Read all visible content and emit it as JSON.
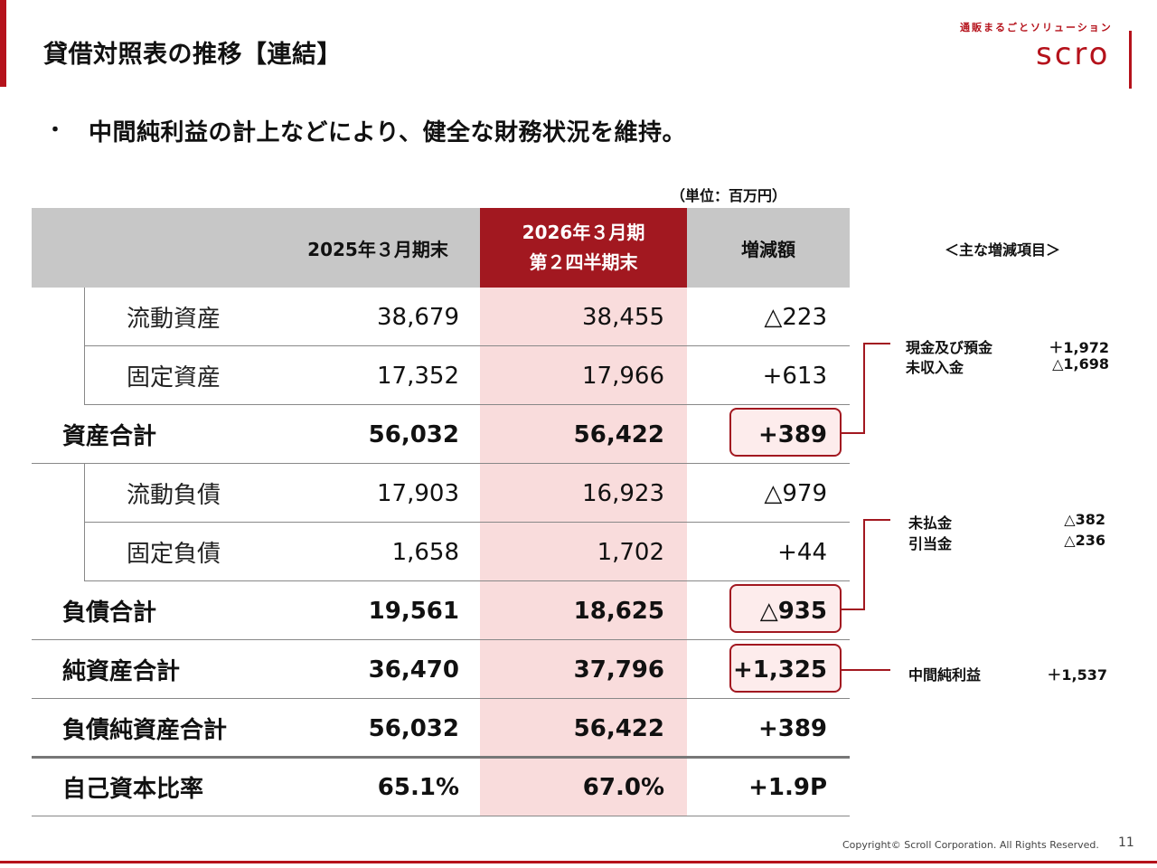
{
  "header": {
    "title": "貸借対照表の推移【連結】",
    "logo_tagline": "通販まるごとソリューション",
    "logo_text": "scro"
  },
  "bullet": {
    "mark": "・",
    "text": "中間純利益の計上などにより、健全な財務状況を維持。"
  },
  "unit": "（単位：百万円）",
  "table": {
    "columns": {
      "col1": "2025年３月期末",
      "col2_line1": "2026年３月期",
      "col2_line2": "第２四半期末",
      "col3": "増減額"
    },
    "rows": [
      {
        "label": "流動資産",
        "v1": "38,679",
        "v2": "38,455",
        "v3": "△223"
      },
      {
        "label": "固定資産",
        "v1": "17,352",
        "v2": "17,966",
        "v3": "+613"
      },
      {
        "label": "資産合計",
        "v1": "56,032",
        "v2": "56,422",
        "v3": "+389"
      },
      {
        "label": "流動負債",
        "v1": "17,903",
        "v2": "16,923",
        "v3": "△979"
      },
      {
        "label": "固定負債",
        "v1": "1,658",
        "v2": "1,702",
        "v3": "+44"
      },
      {
        "label": "負債合計",
        "v1": "19,561",
        "v2": "18,625",
        "v3": "△935"
      },
      {
        "label": "純資産合計",
        "v1": "36,470",
        "v2": "37,796",
        "v3": "+1,325"
      },
      {
        "label": "負債純資産合計",
        "v1": "56,032",
        "v2": "56,422",
        "v3": "+389"
      },
      {
        "label": "自己資本比率",
        "v1": "65.1%",
        "v2": "67.0%",
        "v3": "+1.9P"
      }
    ]
  },
  "notes": {
    "heading": "＜主な増減項目＞",
    "assets": [
      {
        "item": "現金及び預金",
        "value": "＋1,972"
      },
      {
        "item": "未収入金",
        "value": "△1,698"
      }
    ],
    "liabilities": [
      {
        "item": "未払金",
        "value": "△382"
      },
      {
        "item": "引当金",
        "value": "△236"
      }
    ],
    "net_assets": [
      {
        "item": "中間純利益",
        "value": "＋1,537"
      }
    ]
  },
  "footer": {
    "copyright": "Copyright© Scroll Corporation. All Rights Reserved.",
    "page": "11"
  }
}
